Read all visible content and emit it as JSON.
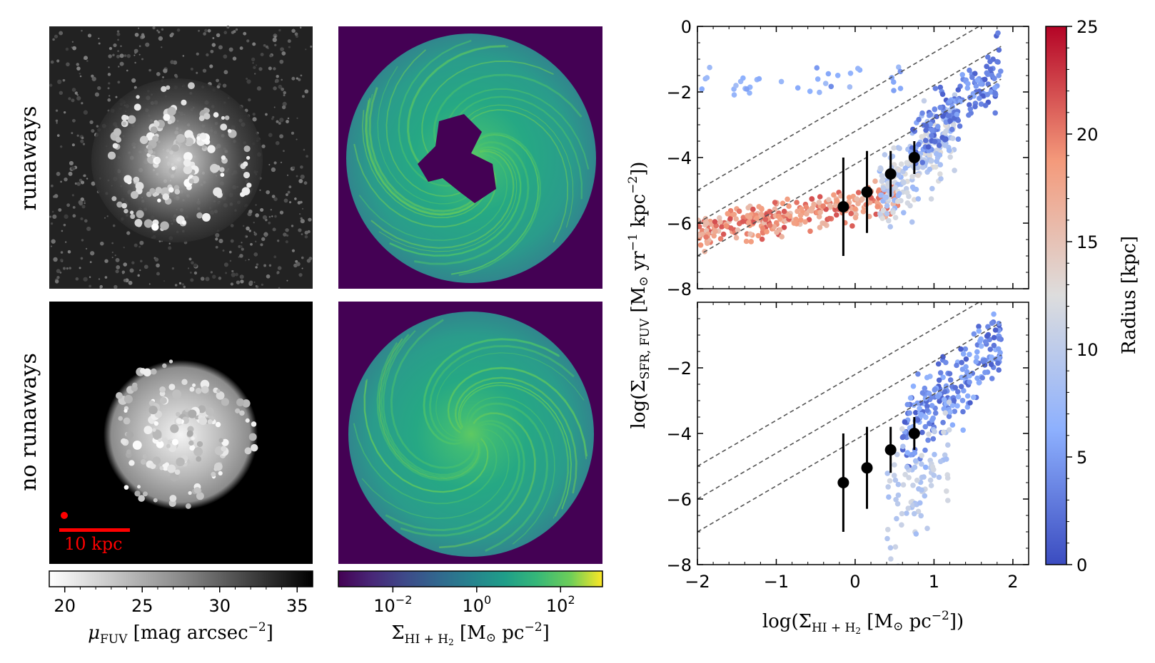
{
  "row_labels": [
    "runaways",
    "no runaways"
  ],
  "scale_bar": {
    "label": "10 kpc",
    "color": "#ff0000"
  },
  "images": [
    {
      "name": "fuv-runaways",
      "kind": "fuv",
      "runaways": true
    },
    {
      "name": "gas-runaways",
      "kind": "gas",
      "runaways": true
    },
    {
      "name": "fuv-no-runaways",
      "kind": "fuv",
      "runaways": false
    },
    {
      "name": "gas-no-runaways",
      "kind": "gas",
      "runaways": false
    }
  ],
  "colorbar_fuv": {
    "ticks": [
      "20",
      "25",
      "30",
      "35"
    ],
    "tick_values": [
      20,
      25,
      30,
      35
    ],
    "range": [
      19,
      36
    ],
    "label_main": "μ",
    "label_sub": "FUV",
    "label_unit": " [mag arcsec",
    "label_exp": "−2",
    "label_close": "]"
  },
  "colorbar_gas": {
    "tick_base": "10",
    "tick_exps": [
      "−2",
      "0",
      "2"
    ],
    "tick_log_values": [
      -2,
      0,
      2
    ],
    "range": [
      -3.3,
      3.0
    ],
    "label_main": "Σ",
    "label_sub": "HI + H",
    "label_sub2": "2",
    "label_unit": " [M",
    "label_sun": "⊙",
    "label_unit2": " pc",
    "label_exp": "−2",
    "label_close": "]"
  },
  "colorbar_radius": {
    "label": "Radius [kpc]",
    "ticks": [
      "0",
      "5",
      "10",
      "15",
      "20",
      "25"
    ],
    "tick_values": [
      0,
      5,
      10,
      15,
      20,
      25
    ],
    "range": [
      0,
      25
    ]
  },
  "chart_data": [
    {
      "type": "scatter",
      "panel": "runaways",
      "xlim": [
        -2,
        2.2
      ],
      "ylim": [
        -8,
        0
      ],
      "xticks": [
        -2,
        -1,
        0,
        1,
        2
      ],
      "yticks": [
        -8,
        -6,
        -4,
        -2,
        0
      ],
      "colormap": "coolwarm",
      "color_variable": "Radius [kpc]",
      "kennicutt_lines": [
        {
          "slope": 1.4,
          "intercept": -2.2
        },
        {
          "slope": 1.4,
          "intercept": -3.2
        },
        {
          "slope": 1.4,
          "intercept": -4.2
        }
      ],
      "binned_means": [
        {
          "x": -0.15,
          "y": -5.5,
          "yerr": 1.5
        },
        {
          "x": 0.15,
          "y": -5.05,
          "yerr": 1.25
        },
        {
          "x": 0.45,
          "y": -4.5,
          "yerr": 0.7
        },
        {
          "x": 0.75,
          "y": -4.0,
          "yerr": 0.5
        }
      ],
      "scatter_regions": [
        {
          "n": 320,
          "x": [
            -2.0,
            0.55
          ],
          "y_at_x0": -6.3,
          "slope": 0.45,
          "scatter": 0.25,
          "r": [
            15,
            22
          ]
        },
        {
          "n": 220,
          "x": [
            0.3,
            1.3
          ],
          "y_at_x0": -5.2,
          "slope": 2.1,
          "scatter": 0.55,
          "r": [
            7,
            13
          ]
        },
        {
          "n": 170,
          "x": [
            0.7,
            1.85
          ],
          "y_at_x0": -3.6,
          "slope": 2.0,
          "scatter": 0.45,
          "r": [
            1,
            6
          ]
        },
        {
          "n": 35,
          "x": [
            -1.95,
            0.6
          ],
          "y_at_x0": -1.9,
          "slope": 0.15,
          "scatter": 0.25,
          "r": [
            4,
            8
          ]
        }
      ]
    },
    {
      "type": "scatter",
      "panel": "no runaways",
      "xlim": [
        -2,
        2.2
      ],
      "ylim": [
        -8,
        0
      ],
      "xticks": [
        -2,
        -1,
        0,
        1,
        2
      ],
      "yticks": [
        -8,
        -6,
        -4,
        -2
      ],
      "xlabel_main": "log(Σ",
      "xlabel_sub": "HI + H",
      "xlabel_sub2": "2",
      "xlabel_unit": " [M",
      "xlabel_sun": "⊙",
      "xlabel_unit2": " pc",
      "xlabel_exp": "−2",
      "xlabel_close": "])",
      "colormap": "coolwarm",
      "color_variable": "Radius [kpc]",
      "kennicutt_lines": [
        {
          "slope": 1.4,
          "intercept": -2.2
        },
        {
          "slope": 1.4,
          "intercept": -3.2
        },
        {
          "slope": 1.4,
          "intercept": -4.2
        }
      ],
      "binned_means": [
        {
          "x": -0.15,
          "y": -5.5,
          "yerr": 1.5
        },
        {
          "x": 0.15,
          "y": -5.05,
          "yerr": 1.25
        },
        {
          "x": 0.45,
          "y": -4.5,
          "yerr": 0.7
        },
        {
          "x": 0.75,
          "y": -4.0,
          "yerr": 0.5
        }
      ],
      "scatter_regions": [
        {
          "n": 230,
          "x": [
            0.6,
            1.85
          ],
          "y_at_x0": -4.0,
          "slope": 2.2,
          "scatter": 0.6,
          "r": [
            1,
            7
          ]
        },
        {
          "n": 90,
          "x": [
            0.4,
            1.2
          ],
          "y_at_x0": -6.0,
          "slope": 1.5,
          "scatter": 0.9,
          "r": [
            8,
            12
          ]
        }
      ]
    }
  ],
  "ylabel_shared": {
    "main": "log(Σ",
    "sub": "SFR, FUV",
    "unit": " [M",
    "sun": "⊙",
    "unit2": " yr",
    "exp1": "−1",
    "unit3": " kpc",
    "exp2": "−2",
    "close": "])"
  }
}
